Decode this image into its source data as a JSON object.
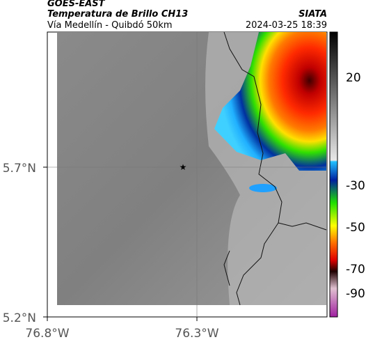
{
  "header": {
    "source": "GOES-EAST",
    "title": "Temperatura de Brillo CH13",
    "subtitle": "Vía Medellín - Quibdó 50km",
    "agency": "SIATA",
    "datetime": "2024-03-25 18:39"
  },
  "map": {
    "lat_ticks": [
      "5.7°N",
      "5.2°N"
    ],
    "lon_ticks": [
      "76.8°W",
      "76.3°W"
    ]
  },
  "colorbar": {
    "ticks": [
      "20",
      "-30",
      "-50",
      "-70",
      "-90"
    ]
  }
}
